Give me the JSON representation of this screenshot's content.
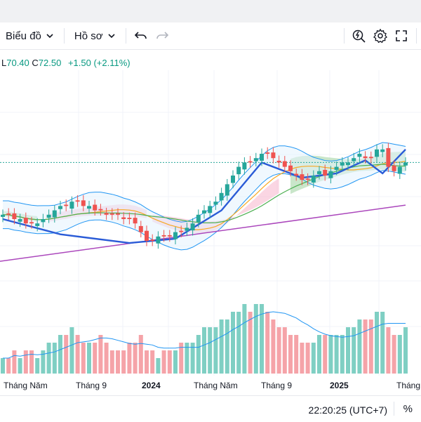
{
  "toolbar": {
    "chart_label": "Biểu đồ",
    "profile_label": "Hồ sơ",
    "icons": [
      "chevron-down-icon",
      "undo-icon",
      "redo-icon",
      "replay-icon",
      "gear-icon",
      "fullscreen-icon"
    ]
  },
  "legend": {
    "low_label": "L",
    "low_value": "70.40",
    "close_label": "C",
    "close_value": "72.50",
    "change": "+1.50 (+2.11%)"
  },
  "xaxis": {
    "labels": [
      "Tháng Năm",
      "Tháng 9",
      "2024",
      "Tháng Năm",
      "Tháng 9",
      "2025",
      "Tháng"
    ]
  },
  "footer": {
    "time": "22:20:25 (UTC+7)",
    "percent_label": "%"
  },
  "colors": {
    "up": "#26a69a",
    "down": "#ef5350",
    "volume_up": "#7fcfc3",
    "volume_down": "#f5a3a8",
    "bollinger": "#2196f3",
    "ma_orange": "#f7a823",
    "ma_green": "#4caf50",
    "cup_line": "#2a5bd7",
    "trendline": "#ab47bc",
    "cloud_green": "#a5d6a7",
    "cloud_red": "#f8bbd0"
  },
  "chart_data": {
    "type": "candlestick",
    "symbol_stats": {
      "low": 70.4,
      "close": 72.5,
      "change": 1.5,
      "change_pct": 2.11
    },
    "x_labels": [
      "Tháng Năm",
      "Tháng 9",
      "2024",
      "Tháng Năm",
      "Tháng 9",
      "2025",
      "Tháng"
    ],
    "close": [
      61,
      61,
      60,
      60,
      59,
      59,
      59,
      60,
      61,
      62,
      63,
      63,
      64,
      64,
      63,
      63,
      62,
      62,
      61,
      61,
      61,
      60,
      60,
      59,
      57,
      55,
      55,
      56,
      56,
      56,
      57,
      57,
      58,
      59,
      61,
      62,
      63,
      64,
      66,
      68,
      70,
      72,
      73,
      73,
      74,
      75,
      75,
      74,
      73,
      72,
      71,
      70,
      69,
      69,
      70,
      71,
      70,
      71,
      72,
      73,
      73,
      74,
      75,
      74,
      74,
      76,
      76,
      72,
      71,
      72,
      73
    ],
    "volume": [
      2,
      2,
      3,
      2,
      3,
      3,
      2,
      3,
      4,
      4,
      5,
      5,
      6,
      5,
      4,
      4,
      4,
      5,
      4,
      3,
      3,
      3,
      4,
      4,
      5,
      3,
      3,
      2,
      3,
      3,
      3,
      4,
      4,
      4,
      5,
      6,
      6,
      6,
      7,
      7,
      8,
      8,
      9,
      8,
      9,
      9,
      8,
      7,
      6,
      6,
      5,
      5,
      4,
      4,
      4,
      5,
      5,
      5,
      5,
      5,
      6,
      6,
      7,
      7,
      7,
      8,
      8,
      6,
      5,
      5,
      6
    ]
  }
}
